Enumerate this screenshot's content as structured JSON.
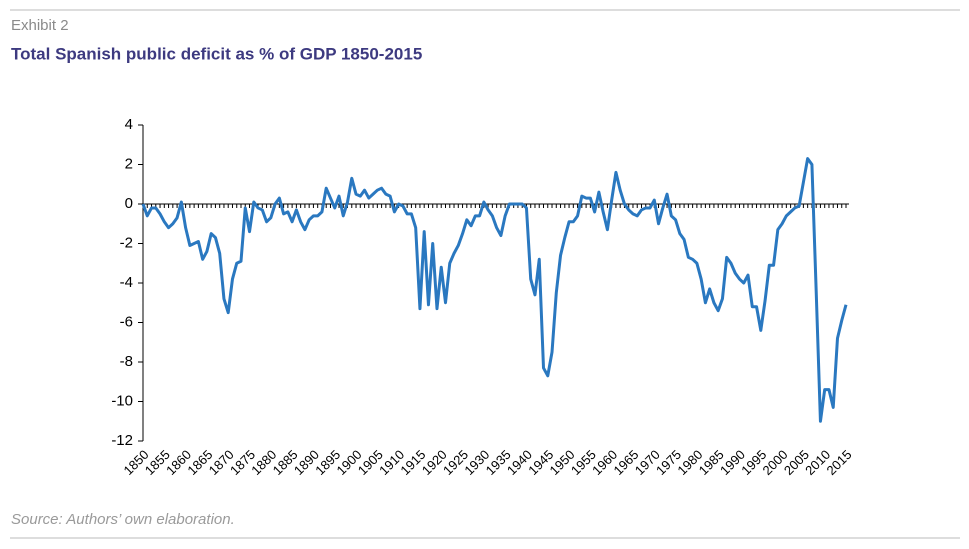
{
  "chart_data": {
    "type": "line",
    "label": "Exhibit 2",
    "title": "Total Spanish public deficit as % of GDP 1850-2015",
    "source": "Source: Authors’ own elaboration.",
    "x": [
      1850,
      1851,
      1852,
      1853,
      1854,
      1855,
      1856,
      1857,
      1858,
      1859,
      1860,
      1861,
      1862,
      1863,
      1864,
      1865,
      1866,
      1867,
      1868,
      1869,
      1870,
      1871,
      1872,
      1873,
      1874,
      1875,
      1876,
      1877,
      1878,
      1879,
      1880,
      1881,
      1882,
      1883,
      1884,
      1885,
      1886,
      1887,
      1888,
      1889,
      1890,
      1891,
      1892,
      1893,
      1894,
      1895,
      1896,
      1897,
      1898,
      1899,
      1900,
      1901,
      1902,
      1903,
      1904,
      1905,
      1906,
      1907,
      1908,
      1909,
      1910,
      1911,
      1912,
      1913,
      1914,
      1915,
      1916,
      1917,
      1918,
      1919,
      1920,
      1921,
      1922,
      1923,
      1924,
      1925,
      1926,
      1927,
      1928,
      1929,
      1930,
      1931,
      1932,
      1933,
      1934,
      1935,
      1936,
      1937,
      1938,
      1939,
      1940,
      1941,
      1942,
      1943,
      1944,
      1945,
      1946,
      1947,
      1948,
      1949,
      1950,
      1951,
      1952,
      1953,
      1954,
      1955,
      1956,
      1957,
      1958,
      1959,
      1960,
      1961,
      1962,
      1963,
      1964,
      1965,
      1966,
      1967,
      1968,
      1969,
      1970,
      1971,
      1972,
      1973,
      1974,
      1975,
      1976,
      1977,
      1978,
      1979,
      1980,
      1981,
      1982,
      1983,
      1984,
      1985,
      1986,
      1987,
      1988,
      1989,
      1990,
      1991,
      1992,
      1993,
      1994,
      1995,
      1996,
      1997,
      1998,
      1999,
      2000,
      2001,
      2002,
      2003,
      2004,
      2005,
      2006,
      2007,
      2008,
      2009,
      2010,
      2011,
      2012,
      2013,
      2014,
      2015
    ],
    "series": [
      {
        "color": "#2a78c0",
        "values": [
          0,
          -0.6,
          -0.2,
          -0.2,
          -0.5,
          -0.9,
          -1.2,
          -1.0,
          -0.7,
          0.1,
          -1.2,
          -2.1,
          -2.0,
          -1.9,
          -2.8,
          -2.4,
          -1.5,
          -1.7,
          -2.5,
          -4.8,
          -5.5,
          -3.8,
          -3.0,
          -2.9,
          -0.2,
          -1.4,
          0.1,
          -0.2,
          -0.3,
          -0.9,
          -0.7,
          0,
          0.3,
          -0.5,
          -0.4,
          -0.9,
          -0.3,
          -0.9,
          -1.3,
          -0.8,
          -0.6,
          -0.6,
          -0.4,
          0.8,
          0.3,
          -0.2,
          0.4,
          -0.6,
          0.1,
          1.3,
          0.5,
          0.4,
          0.7,
          0.3,
          0.5,
          0.7,
          0.8,
          0.5,
          0.4,
          -0.4,
          0,
          -0.1,
          -0.5,
          -0.5,
          -1.2,
          -5.3,
          -1.4,
          -5.1,
          -2.0,
          -5.3,
          -3.2,
          -5.0,
          -3.0,
          -2.5,
          -2.1,
          -1.5,
          -0.8,
          -1.1,
          -0.6,
          -0.6,
          0.1,
          -0.3,
          -0.6,
          -1.2,
          -1.6,
          -0.6,
          0,
          0,
          0,
          0,
          -0.2,
          -3.8,
          -4.6,
          -2.8,
          -8.3,
          -8.7,
          -7.5,
          -4.5,
          -2.6,
          -1.7,
          -0.9,
          -0.9,
          -0.6,
          0.4,
          0.3,
          0.3,
          -0.4,
          0.6,
          -0.4,
          -1.3,
          0.2,
          1.6,
          0.7,
          0,
          -0.3,
          -0.5,
          -0.6,
          -0.3,
          -0.2,
          -0.2,
          0.2,
          -1.0,
          -0.2,
          0.5,
          -0.6,
          -0.8,
          -1.5,
          -1.8,
          -2.7,
          -2.8,
          -3.0,
          -3.8,
          -5.0,
          -4.3,
          -5.0,
          -5.4,
          -4.8,
          -2.7,
          -3.0,
          -3.5,
          -3.8,
          -4.0,
          -3.6,
          -5.2,
          -5.2,
          -6.4,
          -4.9,
          -3.1,
          -3.1,
          -1.3,
          -1.0,
          -0.6,
          -0.4,
          -0.2,
          -0.1,
          1.1,
          2.3,
          2.0,
          -4.4,
          -11.0,
          -9.4,
          -9.4,
          -10.3,
          -6.8,
          -5.9,
          -5.1
        ]
      }
    ],
    "xlim": [
      1850,
      2015
    ],
    "xticks": [
      1850,
      1855,
      1860,
      1865,
      1870,
      1875,
      1880,
      1885,
      1890,
      1895,
      1900,
      1905,
      1910,
      1915,
      1920,
      1925,
      1930,
      1935,
      1940,
      1945,
      1950,
      1955,
      1960,
      1965,
      1970,
      1975,
      1980,
      1985,
      1990,
      1995,
      2000,
      2005,
      2010,
      2015
    ],
    "ylim": [
      -12,
      4
    ],
    "yticks": [
      4,
      2,
      0,
      -2,
      -4,
      -6,
      -8,
      -10,
      -12
    ],
    "grid": false
  }
}
